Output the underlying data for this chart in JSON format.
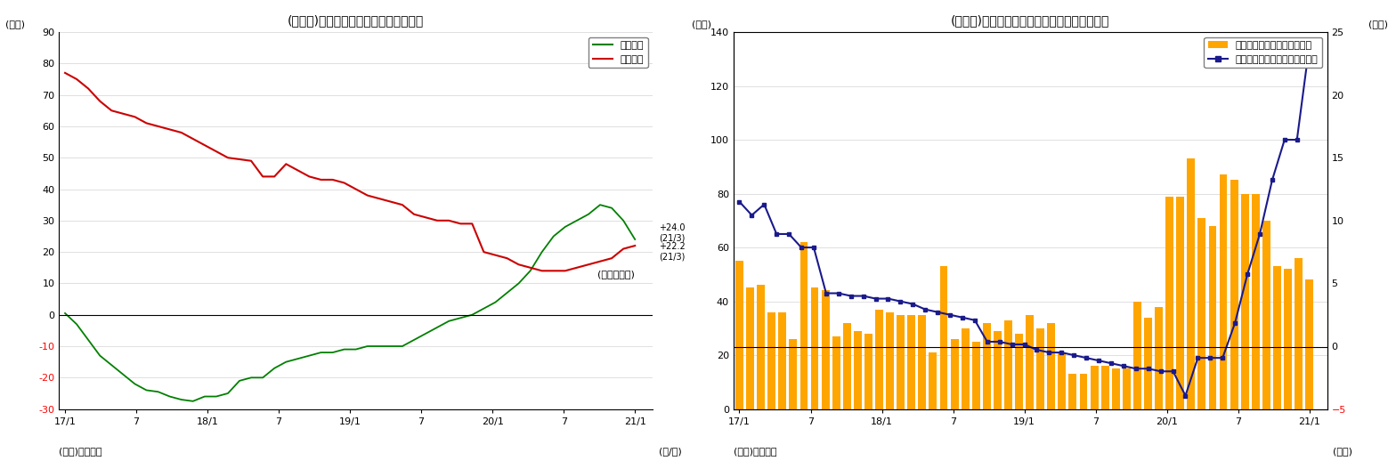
{
  "chart1": {
    "title": "(図表８)日銀国債保有残高の前年比増減",
    "ylabel": "(兆円)",
    "xlabel": "(年/月)",
    "note": "(月末ベース)",
    "source": "(資料)日本銀行",
    "ylim": [
      -30,
      90
    ],
    "yticks": [
      -30,
      -20,
      -10,
      0,
      10,
      20,
      30,
      40,
      50,
      60,
      70,
      80,
      90
    ],
    "xtick_labels": [
      "17/1",
      "7",
      "18/1",
      "7",
      "19/1",
      "7",
      "20/1",
      "7",
      "21/1"
    ],
    "short_color": "#008000",
    "long_color": "#CC0000",
    "short_label": "短期国債",
    "long_label": "長期国債",
    "short_data_y": [
      0.5,
      -3,
      -8,
      -13,
      -16,
      -19,
      -22,
      -24,
      -24.5,
      -26,
      -27,
      -27.5,
      -26,
      -26,
      -25,
      -21,
      -20,
      -20,
      -17,
      -15,
      -14,
      -13,
      -12,
      -12,
      -11,
      -11,
      -10,
      -10,
      -10,
      -10,
      -8,
      -6,
      -4,
      -2,
      -1,
      0,
      2,
      4,
      7,
      10,
      14,
      20,
      25,
      28,
      30,
      32,
      35,
      34,
      30,
      24
    ],
    "long_data_y": [
      77,
      75,
      72,
      68,
      65,
      64,
      63,
      61,
      60,
      59,
      58,
      56,
      54,
      52,
      50,
      49.5,
      49,
      44,
      44,
      48,
      46,
      44,
      43,
      43,
      42,
      40,
      38,
      37,
      36,
      35,
      32,
      31,
      30,
      30,
      29,
      29,
      20,
      19,
      18,
      16,
      15,
      14,
      14,
      14,
      15,
      16,
      17,
      18,
      21,
      22
    ]
  },
  "chart2": {
    "title": "(図表９)マネタリーベース残高と前月比の推移",
    "ylabel_left": "(兆円)",
    "ylabel_right": "(兆円)",
    "xlabel": "(年月)",
    "source": "(資料)日本銀行",
    "ylim_left": [
      0,
      140
    ],
    "ylim_right": [
      -5,
      25
    ],
    "yticks_left": [
      0,
      20,
      40,
      60,
      80,
      100,
      120,
      140
    ],
    "yticks_right": [
      -5,
      0,
      5,
      10,
      15,
      20,
      25
    ],
    "xtick_labels": [
      "17/1",
      "7",
      "18/1",
      "7",
      "19/1",
      "7",
      "20/1",
      "7",
      "21/1"
    ],
    "bar_color": "#FFA500",
    "line_color": "#1a1a8c",
    "bar_label": "季節調整済み前月差（右軸）",
    "line_label": "マネタリーベース末残の前年差",
    "bar_data_right": [
      7,
      5,
      6,
      3,
      3,
      1,
      9,
      5,
      4,
      1,
      3,
      2,
      1,
      3,
      3,
      3,
      3,
      3,
      -1,
      7,
      1,
      2,
      0,
      3,
      1,
      3,
      1,
      3,
      1,
      3,
      -1,
      -3,
      -3,
      0,
      0,
      -1,
      -1,
      3,
      -1,
      2,
      11,
      11,
      14,
      9,
      7,
      13,
      12,
      11,
      11,
      8,
      5,
      4,
      7,
      3
    ],
    "bar_data_left": [
      55,
      45,
      46,
      36,
      36,
      26,
      62,
      45,
      44,
      27,
      32,
      29,
      28,
      37,
      36,
      35,
      35,
      35,
      21,
      53,
      26,
      30,
      25,
      32,
      29,
      33,
      28,
      35,
      30,
      32,
      21,
      13,
      13,
      16,
      16,
      15,
      15,
      40,
      34,
      38,
      79,
      79,
      93,
      71,
      68,
      87,
      85,
      80,
      80,
      70,
      53,
      52,
      56,
      48
    ],
    "line_data_left": [
      77,
      72,
      76,
      65,
      65,
      60,
      60,
      43,
      43,
      42,
      42,
      41,
      41,
      40,
      39,
      37,
      36,
      35,
      34,
      33,
      25,
      25,
      24,
      24,
      22,
      21,
      21,
      20,
      19,
      18,
      17,
      16,
      15,
      15,
      14,
      14,
      5,
      19,
      19,
      19,
      32,
      50,
      65,
      85,
      100,
      100,
      135
    ],
    "n_bars": 54,
    "n_line": 47
  }
}
